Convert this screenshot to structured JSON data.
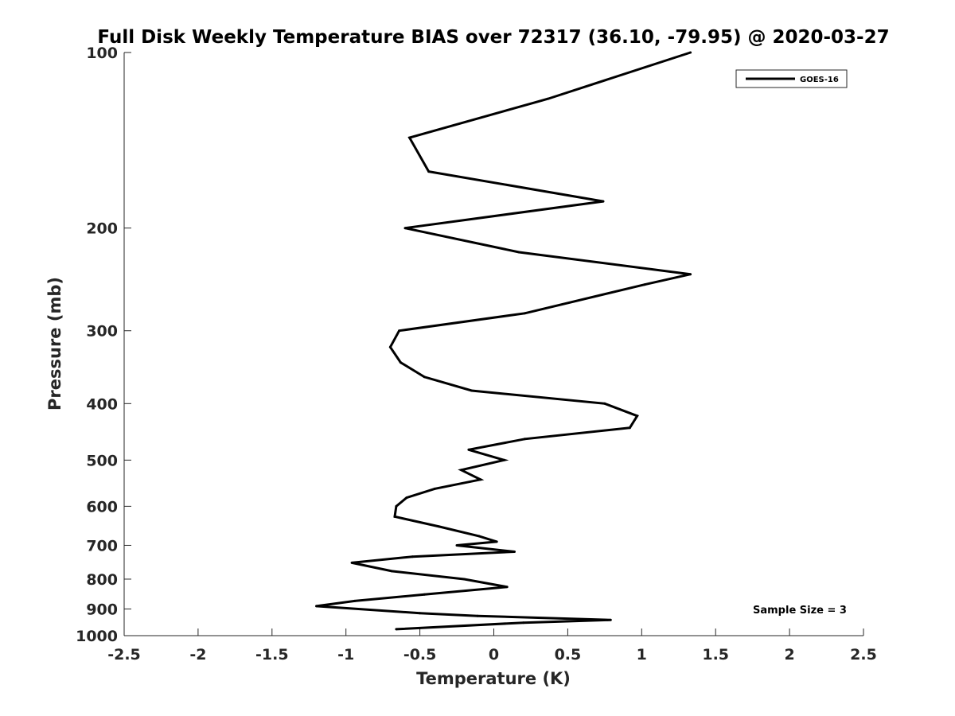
{
  "chart_data": {
    "type": "line",
    "title": "Full Disk Weekly Temperature BIAS over 72317 (36.10, -79.95) @ 2020-03-27",
    "xlabel": "Temperature (K)",
    "ylabel": "Pressure (mb)",
    "xlim": [
      -2.5,
      2.5
    ],
    "ylim": [
      100,
      1000
    ],
    "y_scale": "log",
    "y_reversed": true,
    "x_ticks": [
      "-2.5",
      "-2",
      "-1.5",
      "-1",
      "-0.5",
      "0",
      "0.5",
      "1",
      "1.5",
      "2",
      "2.5"
    ],
    "x_tick_values": [
      -2.5,
      -2,
      -1.5,
      -1,
      -0.5,
      0,
      0.5,
      1,
      1.5,
      2,
      2.5
    ],
    "y_ticks": [
      "100",
      "200",
      "300",
      "400",
      "500",
      "600",
      "700",
      "800",
      "900",
      "1000"
    ],
    "y_tick_values": [
      100,
      200,
      300,
      400,
      500,
      600,
      700,
      800,
      900,
      1000
    ],
    "grid": false,
    "legend_position": "top-right",
    "line_color": "#000000",
    "series": [
      {
        "name": "GOES-16",
        "points": [
          [
            1.33,
            100
          ],
          [
            0.37,
            120
          ],
          [
            -0.57,
            140
          ],
          [
            -0.44,
            160
          ],
          [
            0.74,
            180
          ],
          [
            -0.6,
            200
          ],
          [
            0.17,
            220
          ],
          [
            1.33,
            240
          ],
          [
            1.02,
            250
          ],
          [
            0.21,
            280
          ],
          [
            -0.64,
            300
          ],
          [
            -0.7,
            320
          ],
          [
            -0.63,
            340
          ],
          [
            -0.47,
            360
          ],
          [
            -0.15,
            380
          ],
          [
            0.75,
            400
          ],
          [
            0.97,
            420
          ],
          [
            0.92,
            440
          ],
          [
            0.21,
            460
          ],
          [
            -0.17,
            480
          ],
          [
            0.07,
            500
          ],
          [
            -0.22,
            520
          ],
          [
            -0.09,
            540
          ],
          [
            -0.4,
            560
          ],
          [
            -0.59,
            580
          ],
          [
            -0.66,
            600
          ],
          [
            -0.67,
            625
          ],
          [
            -0.37,
            650
          ],
          [
            -0.1,
            675
          ],
          [
            0.02,
            690
          ],
          [
            -0.25,
            700
          ],
          [
            0.14,
            718
          ],
          [
            -0.55,
            732
          ],
          [
            -0.96,
            750
          ],
          [
            -0.69,
            775
          ],
          [
            -0.2,
            800
          ],
          [
            0.09,
            825
          ],
          [
            -0.47,
            850
          ],
          [
            -0.94,
            872
          ],
          [
            -1.2,
            890
          ],
          [
            -0.5,
            915
          ],
          [
            -0.11,
            925
          ],
          [
            0.79,
            940
          ],
          [
            0.2,
            950
          ],
          [
            -0.66,
            975
          ]
        ]
      }
    ],
    "annotation": "Sample Size = 3"
  }
}
